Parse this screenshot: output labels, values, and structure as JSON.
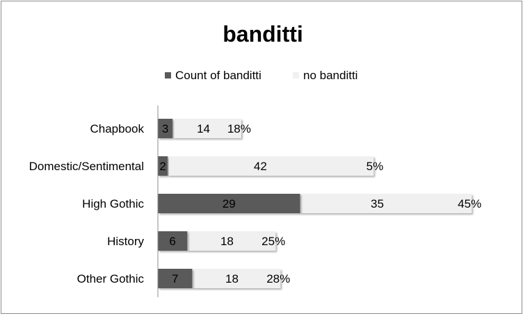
{
  "chart_data": {
    "type": "bar",
    "orientation": "horizontal",
    "stacked": true,
    "title": "banditti",
    "legend_position": "top",
    "categories": [
      "Chapbook",
      "Domestic/Sentimental",
      "High Gothic",
      "History",
      "Other Gothic"
    ],
    "series": [
      {
        "name": "Count of banditti",
        "values": [
          3,
          2,
          29,
          6,
          7
        ],
        "color": "#5a5a5a"
      },
      {
        "name": "no banditti",
        "values": [
          14,
          42,
          35,
          18,
          18
        ],
        "color": "#f0f0f0"
      }
    ],
    "percent_labels": [
      "18%",
      "5%",
      "45%",
      "25%",
      "28%"
    ],
    "xlim": [
      0,
      65
    ],
    "grid": false
  }
}
